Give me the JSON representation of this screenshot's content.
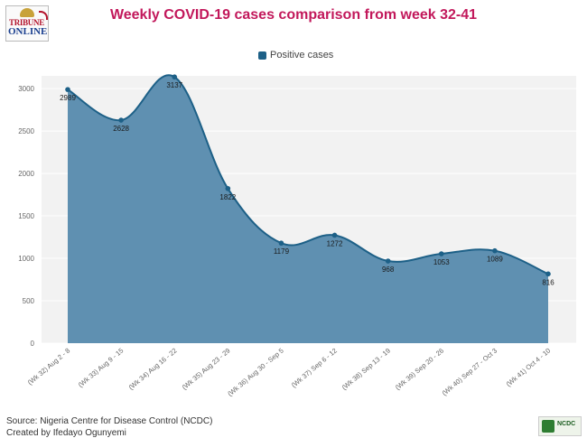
{
  "branding": {
    "logo_line1": "TRIBUNE",
    "logo_line2": "ONLINE",
    "footer_logo_text": "NCDC"
  },
  "title": "Weekly COVID-19 cases comparison from week 32-41",
  "legend": {
    "label": "Positive cases"
  },
  "footer": {
    "source": "Source: Nigeria Centre for Disease Control (NCDC)",
    "credit": "Created by Ifedayo Ogunyemi"
  },
  "colors": {
    "title": "#c2185b",
    "series": "#1d6087",
    "area": "#5f90b1",
    "plot_bg": "#f2f2f2"
  },
  "chart_data": {
    "type": "area",
    "categories": [
      "(Wk 32) Aug 2 - 8",
      "(Wk 33) Aug 9 - 15",
      "(Wk 34) Aug 16 - 22",
      "(Wk 35) Aug 23 - 29",
      "(Wk 36) Aug 30 - Sep 5",
      "(Wk 37) Sep 6 - 12",
      "(Wk 38) Sep 13 - 19",
      "(Wk 39) Sep 20 - 26",
      "(Wk 40) Sep 27 - Oct 3",
      "(Wk 41) Oct 4 - 10"
    ],
    "series": [
      {
        "name": "Positive cases",
        "values": [
          2989,
          2628,
          3137,
          1822,
          1179,
          1272,
          968,
          1053,
          1089,
          816
        ]
      }
    ],
    "yticks": [
      0,
      500,
      1000,
      1500,
      2000,
      2500,
      3000
    ],
    "ylim": [
      0,
      3150
    ],
    "smooth": true,
    "data_labels": true,
    "grid": true,
    "legend_position": "top-center"
  }
}
